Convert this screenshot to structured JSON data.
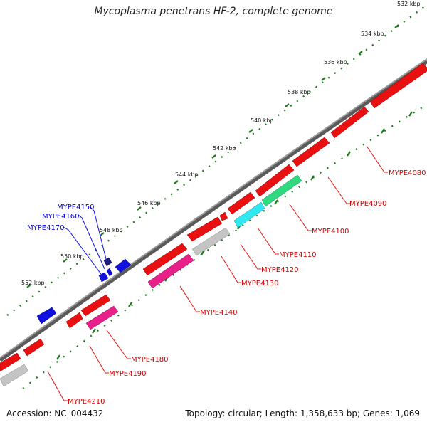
{
  "title": "Mycoplasma penetrans HF-2, complete genome",
  "accession": "Accession: NC_004432",
  "summary": "Topology: circular; Length: 1,358,633 bp; Genes: 1,069",
  "colors": {
    "backbone": "#7a7a7a",
    "tick": "#1a7a1a",
    "forward_gene": "#e81010",
    "reverse_gene": "#1010e0",
    "grey_gene": "#c4c4c4",
    "magenta_gene": "#e8208a",
    "cyan_gene": "#30e8f0",
    "green_gene": "#30d880",
    "navy_gene": "#1a1a80",
    "label_red": "#cc0000",
    "label_blue": "#0000bb"
  },
  "ticks": [
    "532 kbp",
    "534 kbp",
    "536 kbp",
    "538 kbp",
    "540 kbp",
    "542 kbp",
    "544 kbp",
    "546 kbp",
    "548 kbp",
    "550 kbp",
    "552 kbp"
  ],
  "genes_labeled": [
    "MYPE4080",
    "MYPE4090",
    "MYPE4100",
    "MYPE4110",
    "MYPE4120",
    "MYPE4130",
    "MYPE4140",
    "MYPE4180",
    "MYPE4190",
    "MYPE4210",
    "MYPE4150",
    "MYPE4160",
    "MYPE4170"
  ]
}
